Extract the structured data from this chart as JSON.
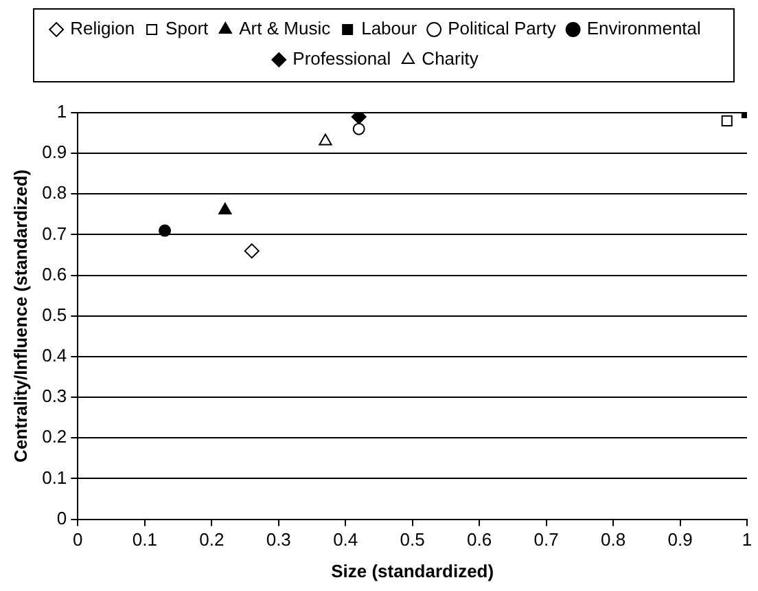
{
  "chart_data": {
    "type": "scatter",
    "xlabel": "Size (standardized)",
    "ylabel": "Centrality/Influence (standardized)",
    "xlim": [
      0,
      1
    ],
    "xticks": [
      0,
      0.1,
      0.2,
      0.3,
      0.4,
      0.5,
      0.6,
      0.7,
      0.8,
      0.9,
      1
    ],
    "ylim": [
      0,
      1
    ],
    "yticks": [
      0,
      0.1,
      0.2,
      0.3,
      0.4,
      0.5,
      0.6,
      0.7,
      0.8,
      0.9,
      1
    ],
    "grid": "y",
    "legend": "top",
    "series": [
      {
        "name": "Religion",
        "marker": "diamond",
        "color": "#ffffff",
        "x": [
          0.26
        ],
        "values": [
          0.66
        ]
      },
      {
        "name": "Sport",
        "marker": "square",
        "color": "#ffffff",
        "x": [
          0.97
        ],
        "values": [
          0.98
        ]
      },
      {
        "name": "Art & Music",
        "marker": "triangle",
        "color": "#000000",
        "x": [
          0.22
        ],
        "values": [
          0.76
        ]
      },
      {
        "name": "Labour",
        "marker": "square",
        "color": "#000000",
        "x": [
          1
        ],
        "values": [
          1
        ]
      },
      {
        "name": "Political Party",
        "marker": "circle",
        "color": "#ffffff",
        "x": [
          0.42
        ],
        "values": [
          0.96
        ]
      },
      {
        "name": "Environmental",
        "marker": "circle",
        "color": "#000000",
        "x": [
          0.13
        ],
        "values": [
          0.71
        ]
      },
      {
        "name": "Professional",
        "marker": "diamond",
        "color": "#000000",
        "x": [
          0.42
        ],
        "values": [
          0.99
        ]
      },
      {
        "name": "Charity",
        "marker": "triangle",
        "color": "#ffffff",
        "x": [
          0.37
        ],
        "values": [
          0.93
        ]
      }
    ]
  }
}
